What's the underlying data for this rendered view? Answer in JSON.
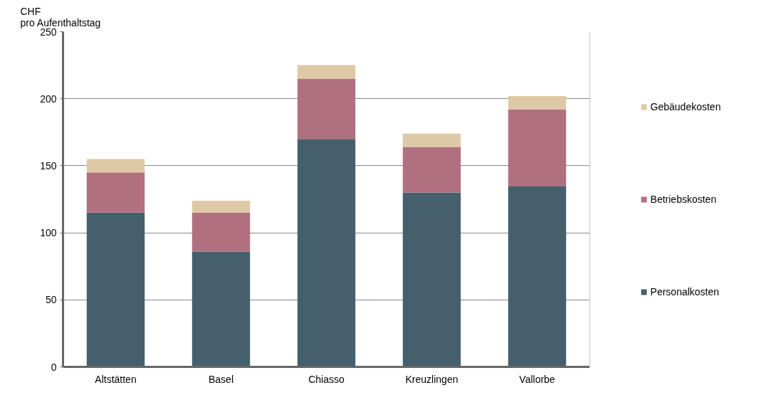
{
  "chart_data": {
    "type": "bar",
    "stacked": true,
    "ylabel": "CHF pro Aufenthaltstag",
    "categories": [
      "Altstätten",
      "Basel",
      "Chiasso",
      "Kreuzlingen",
      "Vallorbe"
    ],
    "series": [
      {
        "name": "Personalkosten",
        "color": "#465f6c",
        "values": [
          115,
          86,
          170,
          130,
          135
        ]
      },
      {
        "name": "Betriebskosten",
        "color": "#b07080",
        "values": [
          30,
          29,
          45,
          34,
          57
        ]
      },
      {
        "name": "Gebäudekosten",
        "color": "#ddc9a5",
        "values": [
          10,
          9,
          10,
          10,
          10
        ]
      }
    ],
    "ylim": [
      0,
      250
    ],
    "yticks": [
      0,
      50,
      100,
      150,
      200,
      250
    ],
    "grid": "y",
    "legend": "right"
  }
}
